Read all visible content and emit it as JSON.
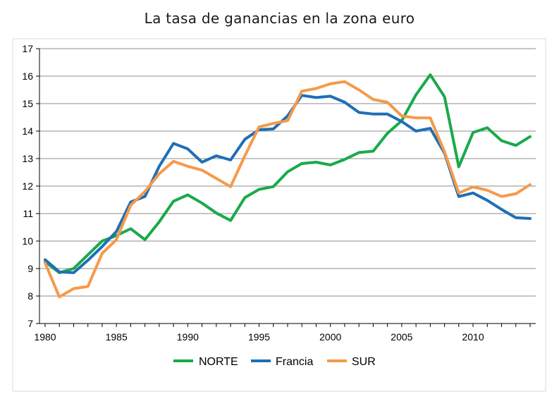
{
  "chart_data": {
    "type": "line",
    "title": "La tasa de ganancias en la zona euro",
    "xlabel": "",
    "ylabel": "",
    "xlim": [
      1980,
      2014
    ],
    "ylim": [
      7,
      17
    ],
    "yticks": [
      7,
      8,
      9,
      10,
      11,
      12,
      13,
      14,
      15,
      16,
      17
    ],
    "xticks": [
      1980,
      1985,
      1990,
      1995,
      2000,
      2005,
      2010
    ],
    "grid": "horizontal",
    "legend_position": "bottom",
    "x": [
      1980,
      1981,
      1982,
      1983,
      1984,
      1985,
      1986,
      1987,
      1988,
      1989,
      1990,
      1991,
      1992,
      1993,
      1994,
      1995,
      1996,
      1997,
      1998,
      1999,
      2000,
      2001,
      2002,
      2003,
      2004,
      2005,
      2006,
      2007,
      2008,
      2009,
      2010,
      2011,
      2012,
      2013,
      2014
    ],
    "series": [
      {
        "name": "NORTE",
        "color": "#1aaa4a",
        "values": [
          9.25,
          8.85,
          9.0,
          9.5,
          10.0,
          10.2,
          10.45,
          10.05,
          10.7,
          11.45,
          11.68,
          11.38,
          11.02,
          10.75,
          11.58,
          11.88,
          11.98,
          12.52,
          12.82,
          12.87,
          12.77,
          12.97,
          13.22,
          13.27,
          13.92,
          14.38,
          15.32,
          16.05,
          15.25,
          12.7,
          13.95,
          14.12,
          13.65,
          13.48,
          13.8
        ]
      },
      {
        "name": "Francia",
        "color": "#1f6fb5",
        "values": [
          9.32,
          8.88,
          8.85,
          9.3,
          9.8,
          10.35,
          11.42,
          11.62,
          12.72,
          13.55,
          13.35,
          12.87,
          13.1,
          12.95,
          13.7,
          14.05,
          14.08,
          14.55,
          15.3,
          15.22,
          15.27,
          15.05,
          14.68,
          14.62,
          14.62,
          14.35,
          14.0,
          14.1,
          13.2,
          11.62,
          11.75,
          11.48,
          11.15,
          10.85,
          10.82
        ]
      },
      {
        "name": "SUR",
        "color": "#f59a4a",
        "values": [
          9.2,
          7.97,
          8.27,
          8.35,
          9.55,
          10.05,
          11.3,
          11.8,
          12.45,
          12.9,
          12.72,
          12.58,
          12.28,
          11.98,
          13.1,
          14.15,
          14.28,
          14.38,
          15.45,
          15.55,
          15.72,
          15.8,
          15.5,
          15.15,
          15.05,
          14.55,
          14.48,
          14.48,
          13.25,
          11.75,
          11.97,
          11.85,
          11.62,
          11.72,
          12.05
        ]
      }
    ]
  }
}
